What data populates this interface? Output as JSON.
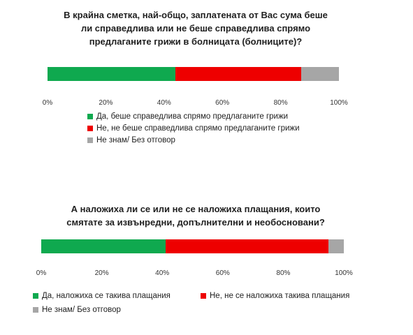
{
  "chart_data": [
    {
      "type": "bar",
      "orientation": "horizontal-stacked",
      "title_lines": [
        "В крайна сметка, най-общо, заплатената от Вас сума беше",
        "ли справедлива или не беше справедлива спрямо",
        "предлаганите грижи в болницата (болниците)?"
      ],
      "xlim": [
        0,
        100
      ],
      "x_ticks": [
        "0%",
        "20%",
        "40%",
        "60%",
        "80%",
        "100%"
      ],
      "series": [
        {
          "name": "Да, беше справедлива спрямо предлаганите грижи",
          "value": 44,
          "color": "#0fa94f"
        },
        {
          "name": "Не, не беше справедлива спрямо предлаганите грижи",
          "value": 43,
          "color": "#ee0000"
        },
        {
          "name": "Не знам/ Без отговор",
          "value": 13,
          "color": "#a6a6a6"
        }
      ],
      "legend_position": "bottom"
    },
    {
      "type": "bar",
      "orientation": "horizontal-stacked",
      "title_lines": [
        "А наложиха ли се или не се наложиха плащания, които",
        "смятате за извънредни, допълнителни и необосновани?"
      ],
      "xlim": [
        0,
        100
      ],
      "x_ticks": [
        "0%",
        "20%",
        "40%",
        "60%",
        "80%",
        "100%"
      ],
      "series": [
        {
          "name": "Да, наложиха се такива плащания",
          "value": 41,
          "color": "#0fa94f"
        },
        {
          "name": "Не, не се наложиха такива плащания",
          "value": 54,
          "color": "#ee0000"
        },
        {
          "name": "Не знам/ Без отговор",
          "value": 5,
          "color": "#a6a6a6"
        }
      ],
      "legend_position": "bottom"
    }
  ]
}
